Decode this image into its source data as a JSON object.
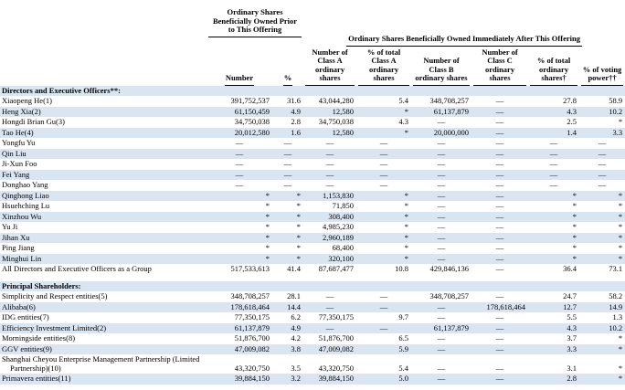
{
  "colors": {
    "stripe": "#d9e6f2",
    "text": "#000000",
    "background": "#ffffff"
  },
  "table": {
    "columns": {
      "prior_group": "Ordinary Shares Beneficially Owned Prior to This Offering",
      "after_group": "Ordinary Shares Beneficially Owned Immediately After This Offering",
      "sub_headers": [
        "Number",
        "%",
        "Number of Class A ordinary shares",
        "% of total Class A ordinary shares",
        "Number of Class B ordinary shares",
        "Number of Class C ordinary shares",
        "% of total ordinary shares†",
        "% of voting power††"
      ]
    },
    "sections": [
      {
        "title": "Directors and Executive Officers**:",
        "rows": [
          {
            "name": "Xiaopeng He(1)",
            "values": [
              "391,752,537",
              "31.6",
              "43,044,280",
              "5.4",
              "348,708,257",
              "—",
              "27.8",
              "58.9"
            ]
          },
          {
            "name": "Heng Xia(2)",
            "values": [
              "61,150,459",
              "4.9",
              "12,580",
              "*",
              "61,137,879",
              "—",
              "4.3",
              "10.2"
            ]
          },
          {
            "name": "Hongdi Brian Gu(3)",
            "values": [
              "34,750,038",
              "2.8",
              "34,750,038",
              "4.3",
              "—",
              "—",
              "2.5",
              "*"
            ]
          },
          {
            "name": "Tao He(4)",
            "values": [
              "20,012,580",
              "1.6",
              "12,580",
              "*",
              "20,000,000",
              "—",
              "1.4",
              "3.3"
            ]
          },
          {
            "name": "Yongfu Yu",
            "values": [
              "—",
              "—",
              "—",
              "—",
              "—",
              "—",
              "—",
              "—"
            ]
          },
          {
            "name": "Qin Liu",
            "values": [
              "—",
              "—",
              "—",
              "—",
              "—",
              "—",
              "—",
              "—"
            ]
          },
          {
            "name": "Ji-Xun Foo",
            "values": [
              "—",
              "—",
              "—",
              "—",
              "—",
              "—",
              "—",
              "—"
            ]
          },
          {
            "name": "Fei Yang",
            "values": [
              "—",
              "—",
              "—",
              "—",
              "—",
              "—",
              "—",
              "—"
            ]
          },
          {
            "name": "Donghao Yang",
            "values": [
              "—",
              "—",
              "—",
              "—",
              "—",
              "—",
              "—",
              "—"
            ]
          },
          {
            "name": "Qinghong Liao",
            "values": [
              "*",
              "*",
              "1,153,830",
              "*",
              "—",
              "—",
              "*",
              "*"
            ]
          },
          {
            "name": "Hsuehching Lu",
            "values": [
              "*",
              "*",
              "71,850",
              "*",
              "—",
              "—",
              "*",
              "*"
            ]
          },
          {
            "name": "Xinzhou Wu",
            "values": [
              "*",
              "*",
              "308,400",
              "*",
              "—",
              "—",
              "*",
              "*"
            ]
          },
          {
            "name": "Yu Ji",
            "values": [
              "*",
              "*",
              "4,985,230",
              "*",
              "—",
              "—",
              "*",
              "*"
            ]
          },
          {
            "name": "Jihan Xu",
            "values": [
              "*",
              "*",
              "2,960,189",
              "*",
              "—",
              "—",
              "*",
              "*"
            ]
          },
          {
            "name": "Ping Jiang",
            "values": [
              "*",
              "*",
              "68,400",
              "*",
              "—",
              "—",
              "*",
              "*"
            ]
          },
          {
            "name": "Minghui Lin",
            "values": [
              "*",
              "*",
              "320,100",
              "*",
              "—",
              "—",
              "*",
              "*"
            ]
          },
          {
            "name": "All Directors and Executive Officers as a Group",
            "values": [
              "517,533,613",
              "41.4",
              "87,687,477",
              "10.8",
              "429,846,136",
              "—",
              "36.4",
              "73.1"
            ]
          }
        ]
      },
      {
        "title": "Principal Shareholders:",
        "rows": [
          {
            "name": "Simplicity and Respect entities(5)",
            "values": [
              "348,708,257",
              "28.1",
              "—",
              "—",
              "348,708,257",
              "—",
              "24.7",
              "58.2"
            ]
          },
          {
            "name": "Alibaba(6)",
            "values": [
              "178,618,464",
              "14.4",
              "—",
              "—",
              "—",
              "178,618,464",
              "12.7",
              "14.9"
            ]
          },
          {
            "name": "IDG entities(7)",
            "values": [
              "77,350,175",
              "6.2",
              "77,350,175",
              "9.7",
              "—",
              "—",
              "5.5",
              "1.3"
            ]
          },
          {
            "name": "Efficiency Investment Limited(2)",
            "values": [
              "61,137,879",
              "4.9",
              "—",
              "—",
              "61,137,879",
              "—",
              "4.3",
              "10.2"
            ]
          },
          {
            "name": "Morningside entities(8)",
            "values": [
              "51,876,700",
              "4.2",
              "51,876,700",
              "6.5",
              "—",
              "—",
              "3.7",
              "*"
            ]
          },
          {
            "name": "GGV entities(9)",
            "values": [
              "47,009,082",
              "3.8",
              "47,009,082",
              "5.9",
              "—",
              "—",
              "3.3",
              "*"
            ]
          },
          {
            "name": "Shanghai Cheyou Enterprise Management Partnership (Limited Partnership)(10)",
            "values": [
              "43,320,750",
              "3.5",
              "43,320,750",
              "5.4",
              "—",
              "—",
              "3.1",
              "*"
            ]
          },
          {
            "name": "Primavera entities(11)",
            "values": [
              "39,884,150",
              "3.2",
              "39,884,150",
              "5.0",
              "—",
              "—",
              "2.8",
              "*"
            ]
          }
        ]
      }
    ]
  }
}
